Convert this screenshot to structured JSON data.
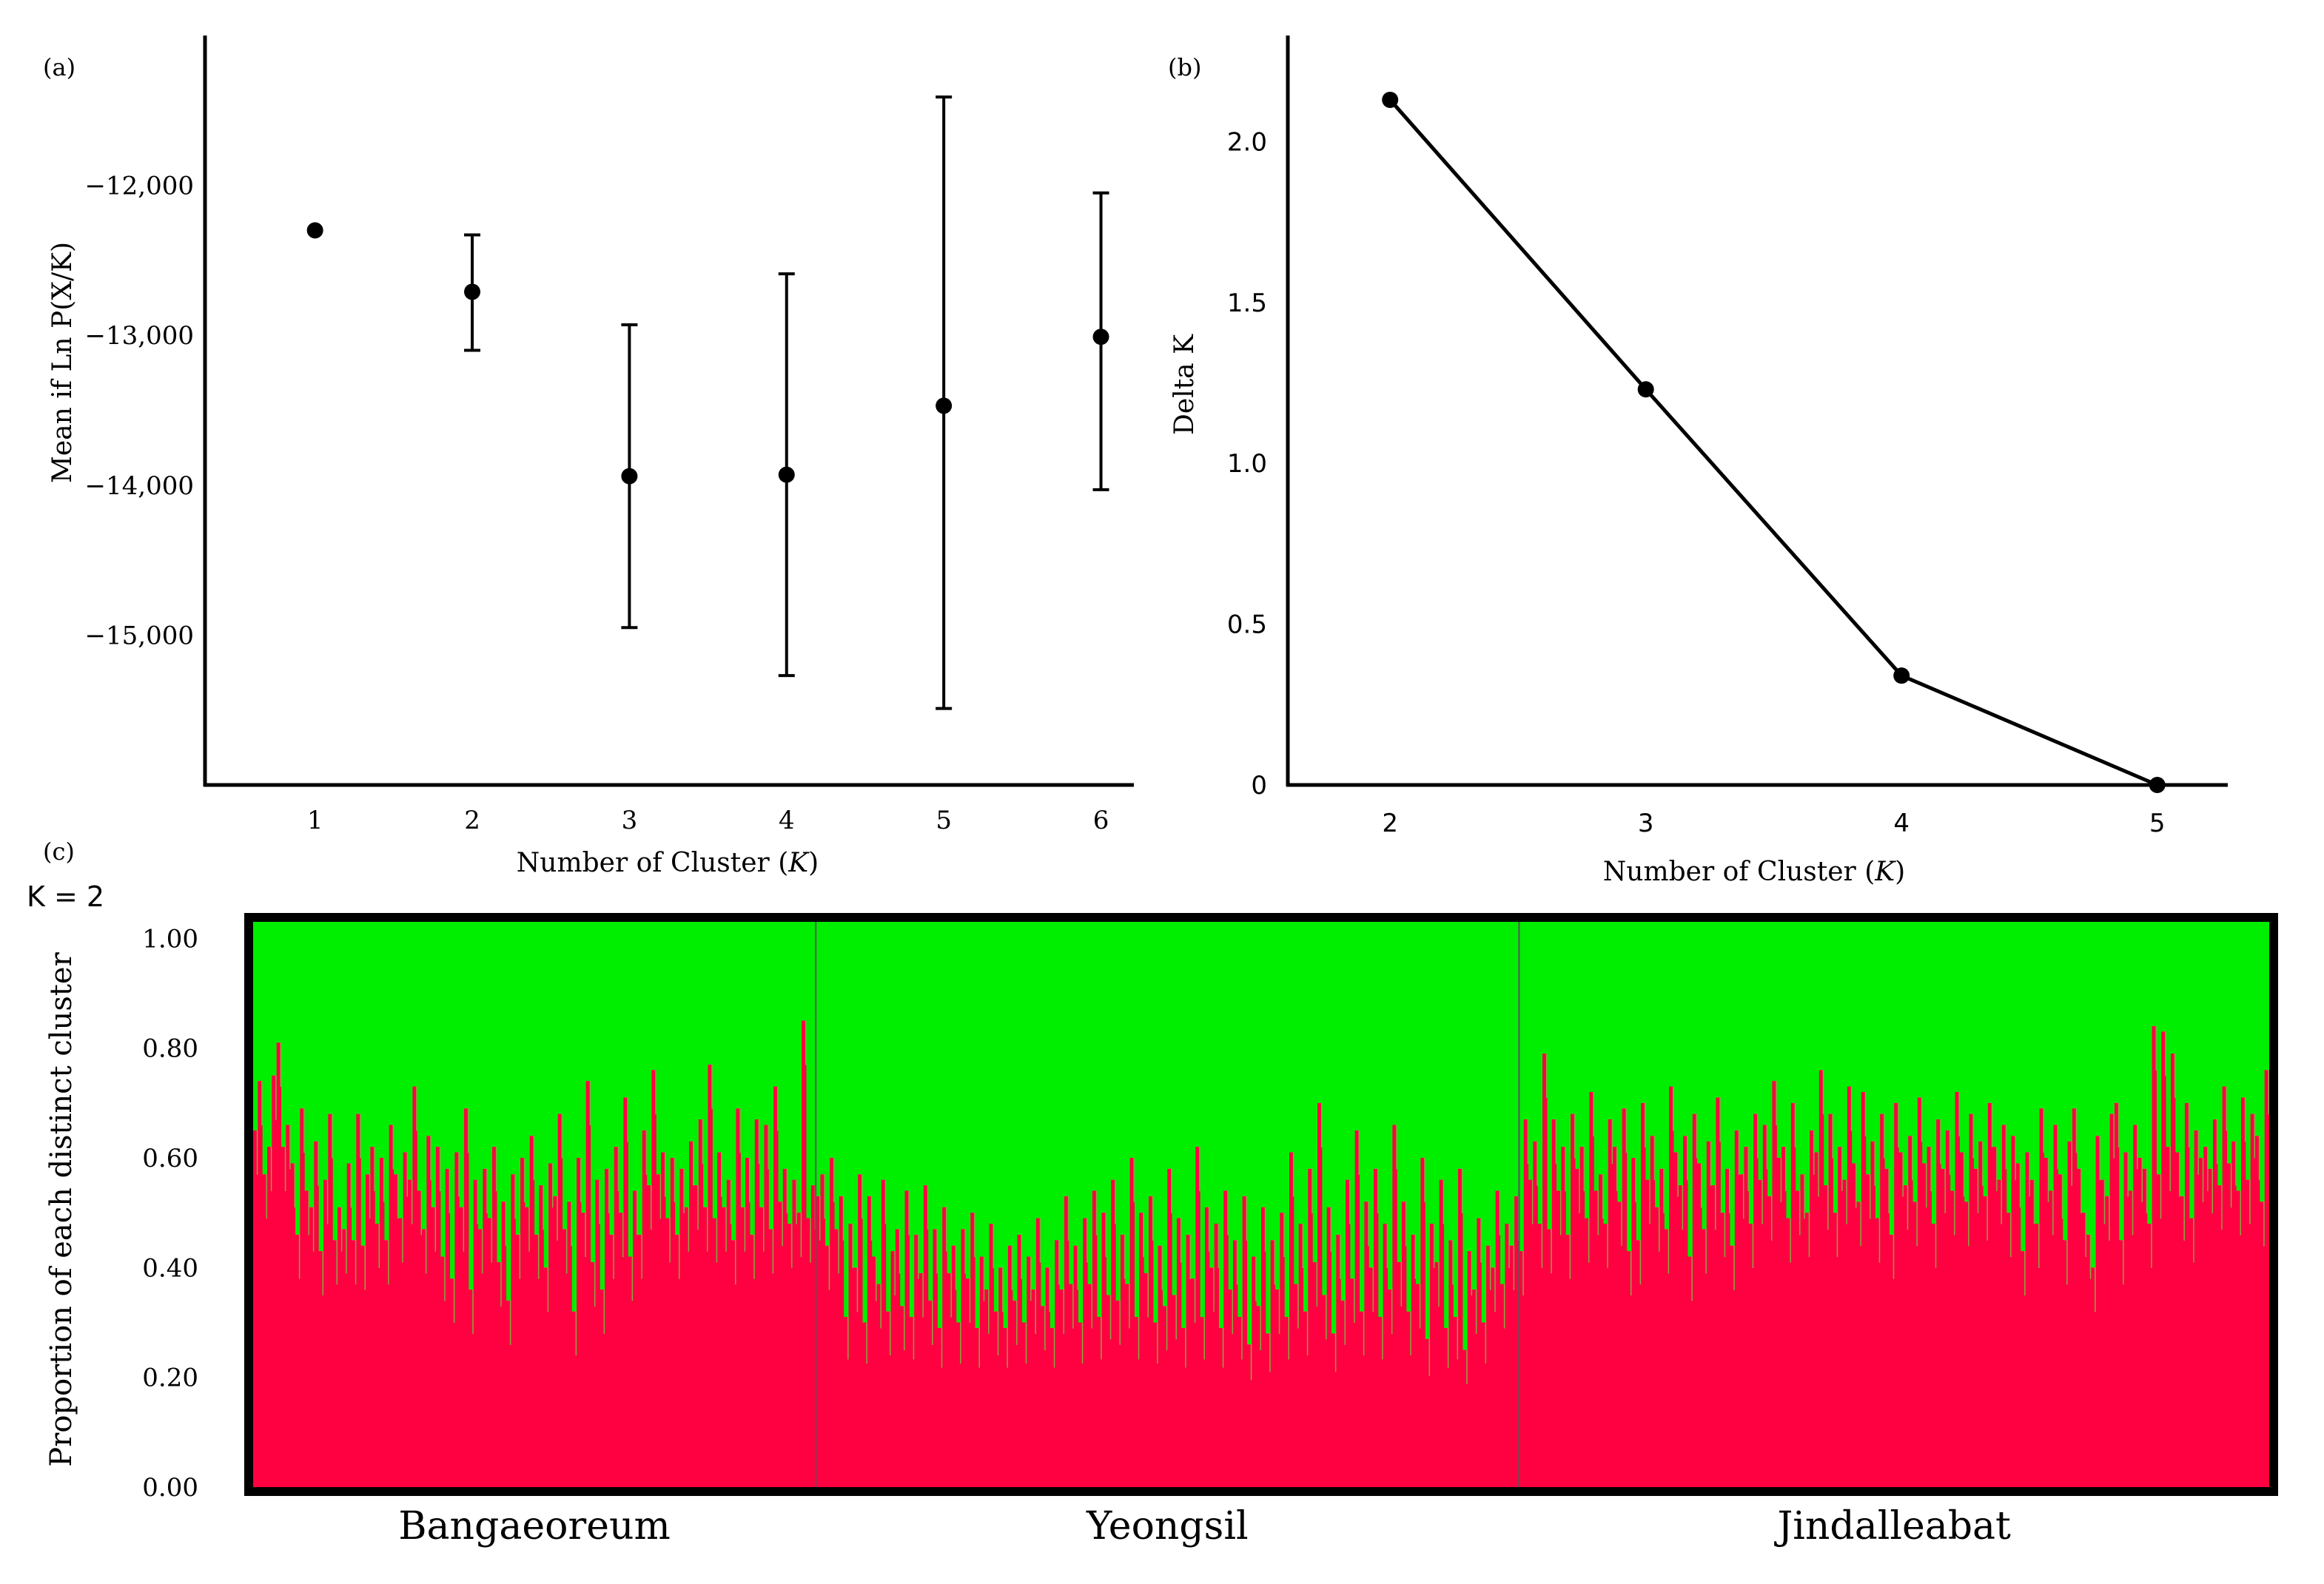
{
  "chart_data": [
    {
      "panel": "(a)",
      "type": "scatter",
      "xlabel": "Number of Cluster",
      "xlabel_var": "K",
      "ylabel": "Mean if Ln P(X/K)",
      "x_ticks": [
        "1",
        "2",
        "3",
        "4",
        "5",
        "6"
      ],
      "y_ticks": [
        "−12,000",
        "−13,000",
        "−14,000",
        "−15,000"
      ],
      "y_tick_values": [
        -12000,
        -13000,
        -14000,
        -15000
      ],
      "xlim": [
        0.3,
        6.2
      ],
      "ylim": [
        -16000,
        -11000
      ],
      "points": [
        {
          "k": 1,
          "mean": -12300,
          "low": null,
          "high": null
        },
        {
          "k": 2,
          "mean": -12710,
          "low": -13100,
          "high": -12330
        },
        {
          "k": 3,
          "mean": -13940,
          "low": -14950,
          "high": -12930
        },
        {
          "k": 4,
          "mean": -13930,
          "low": -15270,
          "high": -12590
        },
        {
          "k": 5,
          "mean": -13470,
          "low": -15490,
          "high": -11410
        },
        {
          "k": 6,
          "mean": -13010,
          "low": -14030,
          "high": -12050
        }
      ]
    },
    {
      "panel": "(b)",
      "type": "line",
      "xlabel": "Number of Cluster",
      "xlabel_var": "K",
      "ylabel": "Delta K",
      "x_ticks": [
        "2",
        "3",
        "4",
        "5"
      ],
      "y_ticks": [
        "0",
        "0.5",
        "1.0",
        "1.5",
        "2.0"
      ],
      "y_tick_values": [
        0,
        0.5,
        1.0,
        1.5,
        2.0
      ],
      "xlim": [
        1.6,
        5.27
      ],
      "ylim": [
        0,
        2.33
      ],
      "x": [
        2,
        3,
        4,
        5
      ],
      "y": [
        2.13,
        1.23,
        0.34,
        0.0
      ]
    },
    {
      "panel": "(c)",
      "type": "bar",
      "stacked": true,
      "subtitle": "K = 2",
      "ylabel": "Proportion of each distinct cluster",
      "y_ticks": [
        "1.00",
        "0.80",
        "0.60",
        "0.40",
        "0.20",
        "0.00"
      ],
      "y_tick_values": [
        1.0,
        0.8,
        0.6,
        0.4,
        0.2,
        0.0
      ],
      "ylim": [
        0,
        1.03
      ],
      "series": [
        {
          "name": "cluster 1",
          "color": "#ff0040"
        },
        {
          "name": "cluster 2",
          "color": "#00ee00"
        }
      ],
      "individual_marker_color": "#8aa640",
      "populations": [
        {
          "name": "Bangaeoreum",
          "values": [
            0.65,
            0.74,
            0.57,
            0.62,
            0.75,
            0.81,
            0.62,
            0.66,
            0.59,
            0.46,
            0.69,
            0.54,
            0.51,
            0.63,
            0.43,
            0.56,
            0.68,
            0.45,
            0.51,
            0.47,
            0.59,
            0.45,
            0.68,
            0.44,
            0.57,
            0.62,
            0.48,
            0.6,
            0.45,
            0.66,
            0.57,
            0.49,
            0.61,
            0.56,
            0.73,
            0.54,
            0.47,
            0.64,
            0.51,
            0.62,
            0.42,
            0.58,
            0.38,
            0.61,
            0.51,
            0.69,
            0.36,
            0.56,
            0.47,
            0.58,
            0.49,
            0.62,
            0.41,
            0.52,
            0.34,
            0.57,
            0.46,
            0.6,
            0.51,
            0.64,
            0.46,
            0.55,
            0.4,
            0.59,
            0.53,
            0.68,
            0.47,
            0.52,
            0.32,
            0.6,
            0.5,
            0.74,
            0.41,
            0.56,
            0.36,
            0.58,
            0.46,
            0.62,
            0.5,
            0.71,
            0.42,
            0.54,
            0.46,
            0.65,
            0.55,
            0.76,
            0.57,
            0.61,
            0.49,
            0.6,
            0.46,
            0.58,
            0.51,
            0.63,
            0.55,
            0.67,
            0.51,
            0.77,
            0.49,
            0.61,
            0.51,
            0.56,
            0.45,
            0.69,
            0.51,
            0.6,
            0.46,
            0.67,
            0.51,
            0.66,
            0.47,
            0.73,
            0.52,
            0.58,
            0.48,
            0.56,
            0.5,
            0.85,
            0.49,
            0.55
          ]
        },
        {
          "name": "Yeongsil",
          "values": [
            0.53,
            0.57,
            0.44,
            0.6,
            0.47,
            0.53,
            0.31,
            0.48,
            0.4,
            0.57,
            0.3,
            0.53,
            0.42,
            0.37,
            0.56,
            0.32,
            0.43,
            0.47,
            0.33,
            0.54,
            0.31,
            0.46,
            0.39,
            0.55,
            0.34,
            0.47,
            0.29,
            0.51,
            0.39,
            0.44,
            0.3,
            0.47,
            0.38,
            0.5,
            0.29,
            0.42,
            0.36,
            0.48,
            0.32,
            0.4,
            0.29,
            0.44,
            0.34,
            0.46,
            0.3,
            0.42,
            0.36,
            0.49,
            0.33,
            0.4,
            0.29,
            0.45,
            0.36,
            0.53,
            0.37,
            0.44,
            0.3,
            0.49,
            0.37,
            0.54,
            0.31,
            0.5,
            0.35,
            0.56,
            0.34,
            0.46,
            0.37,
            0.6,
            0.31,
            0.5,
            0.39,
            0.53,
            0.3,
            0.44,
            0.33,
            0.58,
            0.35,
            0.49,
            0.29,
            0.46,
            0.38,
            0.62,
            0.31,
            0.51,
            0.4,
            0.48,
            0.29,
            0.54,
            0.36,
            0.45,
            0.31,
            0.53,
            0.26,
            0.42,
            0.33,
            0.51,
            0.28,
            0.45,
            0.36,
            0.5,
            0.31,
            0.61,
            0.37,
            0.48,
            0.32,
            0.58,
            0.41,
            0.7,
            0.35,
            0.51,
            0.28,
            0.46,
            0.34,
            0.56,
            0.38,
            0.65,
            0.32,
            0.52,
            0.4,
            0.58,
            0.31,
            0.48,
            0.36,
            0.66,
            0.41,
            0.52,
            0.32,
            0.46,
            0.37,
            0.6,
            0.27,
            0.48,
            0.41,
            0.56,
            0.29,
            0.45,
            0.31,
            0.58,
            0.25,
            0.43,
            0.36,
            0.49,
            0.3,
            0.44,
            0.4,
            0.54,
            0.37,
            0.48,
            0.44,
            0.53
          ]
        },
        {
          "name": "Jindalleabat",
          "values": [
            0.43,
            0.67,
            0.56,
            0.63,
            0.48,
            0.79,
            0.47,
            0.67,
            0.54,
            0.62,
            0.46,
            0.68,
            0.58,
            0.62,
            0.49,
            0.72,
            0.54,
            0.57,
            0.48,
            0.67,
            0.62,
            0.52,
            0.69,
            0.43,
            0.6,
            0.45,
            0.7,
            0.56,
            0.64,
            0.51,
            0.58,
            0.47,
            0.73,
            0.61,
            0.55,
            0.64,
            0.42,
            0.68,
            0.59,
            0.47,
            0.63,
            0.55,
            0.71,
            0.5,
            0.58,
            0.44,
            0.65,
            0.57,
            0.62,
            0.48,
            0.68,
            0.56,
            0.66,
            0.53,
            0.74,
            0.6,
            0.62,
            0.49,
            0.7,
            0.54,
            0.57,
            0.5,
            0.65,
            0.61,
            0.76,
            0.55,
            0.68,
            0.5,
            0.62,
            0.56,
            0.73,
            0.59,
            0.52,
            0.72,
            0.57,
            0.63,
            0.49,
            0.68,
            0.58,
            0.46,
            0.7,
            0.61,
            0.55,
            0.64,
            0.52,
            0.71,
            0.59,
            0.62,
            0.48,
            0.67,
            0.58,
            0.65,
            0.54,
            0.72,
            0.61,
            0.52,
            0.68,
            0.58,
            0.63,
            0.53,
            0.7,
            0.62,
            0.56,
            0.66,
            0.5,
            0.64,
            0.59,
            0.43,
            0.61,
            0.56,
            0.48,
            0.69,
            0.6,
            0.54,
            0.66,
            0.57,
            0.45,
            0.63,
            0.69,
            0.58,
            0.5,
            0.46,
            0.4,
            0.64,
            0.56,
            0.53,
            0.68,
            0.7,
            0.45,
            0.61,
            0.54,
            0.66,
            0.6,
            0.58,
            0.48,
            0.84,
            0.57,
            0.83,
            0.62,
            0.79,
            0.61,
            0.53,
            0.7,
            0.49,
            0.65,
            0.6,
            0.62,
            0.58,
            0.67,
            0.55,
            0.73,
            0.59,
            0.63,
            0.54,
            0.71,
            0.56,
            0.68,
            0.64,
            0.52,
            0.76
          ]
        }
      ]
    }
  ]
}
